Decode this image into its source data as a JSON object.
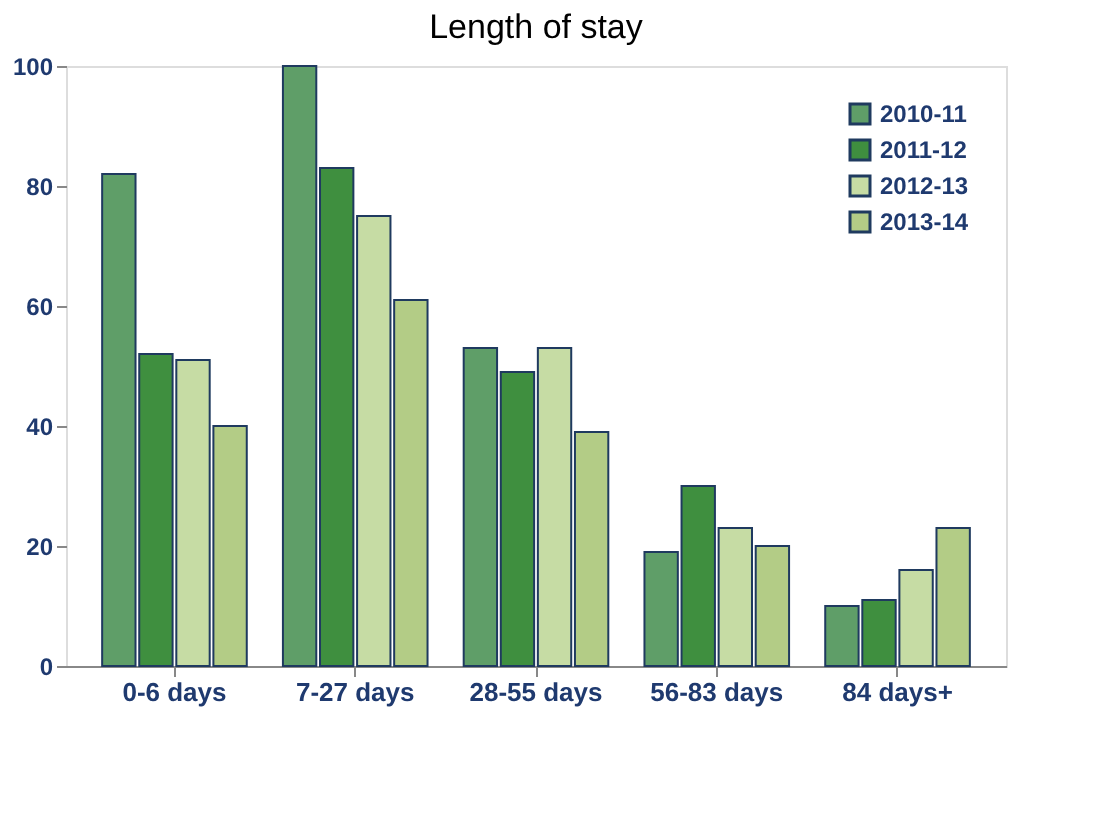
{
  "chart_data": {
    "type": "bar",
    "title": "Length of stay",
    "categories": [
      "0-6 days",
      "7-27  days",
      "28-55 days",
      "56-83 days",
      "84 days+"
    ],
    "series": [
      {
        "name": "2010-11",
        "color": "#5f9e68",
        "values": [
          82,
          100,
          53,
          19,
          10
        ]
      },
      {
        "name": "2011-12",
        "color": "#3f8f3f",
        "values": [
          52,
          83,
          49,
          30,
          11
        ]
      },
      {
        "name": "2012-13",
        "color": "#c6dca4",
        "values": [
          51,
          75,
          53,
          23,
          16
        ]
      },
      {
        "name": "2013-14",
        "color": "#b3cc86",
        "values": [
          40,
          61,
          39,
          20,
          23
        ]
      }
    ],
    "ylim": [
      0,
      100
    ],
    "yticks": [
      0,
      20,
      40,
      60,
      80,
      100
    ],
    "grid": false,
    "legend": "top right"
  }
}
